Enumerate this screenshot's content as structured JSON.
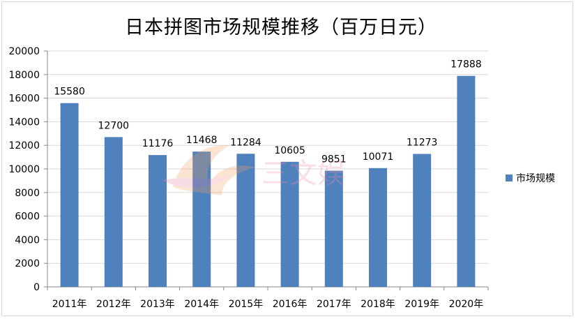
{
  "chart_data": {
    "type": "bar",
    "title": "日本拼图市场规模推移（百万日元）",
    "categories": [
      "2011年",
      "2012年",
      "2013年",
      "2014年",
      "2015年",
      "2016年",
      "2017年",
      "2018年",
      "2019年",
      "2020年"
    ],
    "series": [
      {
        "name": "市场规模",
        "values": [
          15580,
          12700,
          11176,
          11468,
          11284,
          10605,
          9851,
          10071,
          11273,
          17888
        ],
        "color": "#4f81bd"
      }
    ],
    "ylim": [
      0,
      20000
    ],
    "yticks": [
      0,
      2000,
      4000,
      6000,
      8000,
      10000,
      12000,
      14000,
      16000,
      18000,
      20000
    ],
    "grid": true,
    "legend_position": "right",
    "show_data_labels": true
  },
  "watermark": {
    "text": "三文娱"
  }
}
